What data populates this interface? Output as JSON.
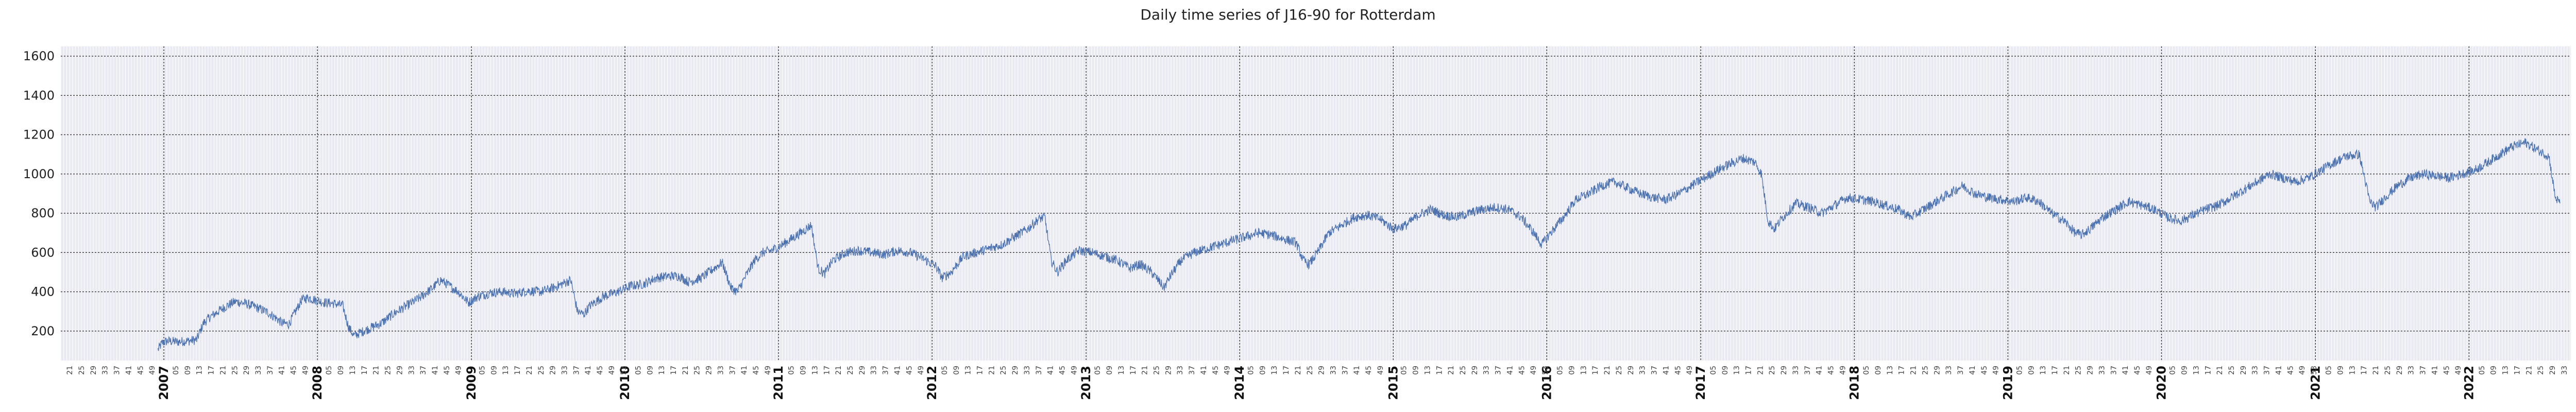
{
  "chart_data": {
    "type": "line",
    "title": "Daily time series of J16-90 for Rotterdam",
    "xlabel": "",
    "ylabel": "",
    "ylim": [
      50,
      1650
    ],
    "yticks": [
      200,
      400,
      600,
      800,
      1000,
      1200,
      1400,
      1600
    ],
    "grid": true,
    "x_range": [
      "2006-05-01",
      "2022-08-31"
    ],
    "year_labels": [
      "2007",
      "2008",
      "2009",
      "2010",
      "2011",
      "2012",
      "2013",
      "2014",
      "2015",
      "2016",
      "2017",
      "2018",
      "2019",
      "2020",
      "2021",
      "2022"
    ],
    "week_tick_interval_weeks": 4,
    "series": [
      {
        "color": "#4c72b0",
        "points": [
          [
            "2006-12-18",
            105
          ],
          [
            "2006-12-28",
            140
          ],
          [
            "2007-01-10",
            150
          ],
          [
            "2007-02-01",
            145
          ],
          [
            "2007-03-01",
            150
          ],
          [
            "2007-03-20",
            155
          ],
          [
            "2007-04-05",
            240
          ],
          [
            "2007-04-20",
            270
          ],
          [
            "2007-05-10",
            300
          ],
          [
            "2007-06-01",
            330
          ],
          [
            "2007-06-20",
            350
          ],
          [
            "2007-07-15",
            340
          ],
          [
            "2007-08-10",
            320
          ],
          [
            "2007-09-05",
            295
          ],
          [
            "2007-09-25",
            265
          ],
          [
            "2007-10-10",
            240
          ],
          [
            "2007-10-25",
            235
          ],
          [
            "2007-11-10",
            300
          ],
          [
            "2007-11-25",
            360
          ],
          [
            "2007-12-10",
            370
          ],
          [
            "2007-12-31",
            355
          ],
          [
            "2008-01-20",
            345
          ],
          [
            "2008-02-10",
            340
          ],
          [
            "2008-03-01",
            330
          ],
          [
            "2008-03-15",
            220
          ],
          [
            "2008-03-28",
            175
          ],
          [
            "2008-04-10",
            190
          ],
          [
            "2008-05-05",
            215
          ],
          [
            "2008-06-01",
            240
          ],
          [
            "2008-07-01",
            290
          ],
          [
            "2008-08-01",
            330
          ],
          [
            "2008-09-01",
            370
          ],
          [
            "2008-10-01",
            420
          ],
          [
            "2008-10-20",
            460
          ],
          [
            "2008-11-10",
            430
          ],
          [
            "2008-12-01",
            400
          ],
          [
            "2008-12-25",
            345
          ],
          [
            "2009-01-15",
            375
          ],
          [
            "2009-02-15",
            395
          ],
          [
            "2009-03-15",
            400
          ],
          [
            "2009-04-15",
            390
          ],
          [
            "2009-05-15",
            405
          ],
          [
            "2009-06-15",
            400
          ],
          [
            "2009-07-15",
            420
          ],
          [
            "2009-08-05",
            440
          ],
          [
            "2009-08-25",
            460
          ],
          [
            "2009-09-10",
            300
          ],
          [
            "2009-09-25",
            285
          ],
          [
            "2009-10-10",
            330
          ],
          [
            "2009-11-10",
            375
          ],
          [
            "2009-12-15",
            400
          ],
          [
            "2010-01-15",
            430
          ],
          [
            "2010-02-15",
            440
          ],
          [
            "2010-03-15",
            470
          ],
          [
            "2010-04-15",
            480
          ],
          [
            "2010-05-10",
            480
          ],
          [
            "2010-06-01",
            450
          ],
          [
            "2010-07-01",
            470
          ],
          [
            "2010-08-01",
            520
          ],
          [
            "2010-08-20",
            550
          ],
          [
            "2010-09-10",
            420
          ],
          [
            "2010-09-25",
            400
          ],
          [
            "2010-10-15",
            480
          ],
          [
            "2010-11-05",
            560
          ],
          [
            "2010-11-25",
            600
          ],
          [
            "2010-12-15",
            610
          ],
          [
            "2011-01-10",
            640
          ],
          [
            "2011-02-01",
            670
          ],
          [
            "2011-03-01",
            710
          ],
          [
            "2011-03-20",
            740
          ],
          [
            "2011-04-05",
            520
          ],
          [
            "2011-04-20",
            490
          ],
          [
            "2011-05-10",
            560
          ],
          [
            "2011-06-10",
            600
          ],
          [
            "2011-07-10",
            610
          ],
          [
            "2011-08-10",
            600
          ],
          [
            "2011-09-10",
            590
          ],
          [
            "2011-10-10",
            610
          ],
          [
            "2011-11-10",
            600
          ],
          [
            "2011-12-10",
            570
          ],
          [
            "2012-01-10",
            530
          ],
          [
            "2012-01-25",
            470
          ],
          [
            "2012-02-15",
            500
          ],
          [
            "2012-03-15",
            580
          ],
          [
            "2012-04-15",
            600
          ],
          [
            "2012-05-15",
            620
          ],
          [
            "2012-06-15",
            640
          ],
          [
            "2012-07-15",
            680
          ],
          [
            "2012-08-15",
            720
          ],
          [
            "2012-09-10",
            770
          ],
          [
            "2012-09-25",
            780
          ],
          [
            "2012-10-10",
            560
          ],
          [
            "2012-10-25",
            500
          ],
          [
            "2012-11-15",
            560
          ],
          [
            "2012-12-15",
            610
          ],
          [
            "2013-01-15",
            600
          ],
          [
            "2013-02-15",
            580
          ],
          [
            "2013-03-15",
            560
          ],
          [
            "2013-04-15",
            520
          ],
          [
            "2013-05-10",
            540
          ],
          [
            "2013-06-05",
            500
          ],
          [
            "2013-06-25",
            450
          ],
          [
            "2013-07-05",
            420
          ],
          [
            "2013-07-20",
            480
          ],
          [
            "2013-08-15",
            560
          ],
          [
            "2013-09-15",
            600
          ],
          [
            "2013-10-15",
            620
          ],
          [
            "2013-11-15",
            640
          ],
          [
            "2013-12-15",
            660
          ],
          [
            "2014-01-15",
            680
          ],
          [
            "2014-02-15",
            700
          ],
          [
            "2014-03-15",
            690
          ],
          [
            "2014-04-15",
            670
          ],
          [
            "2014-05-15",
            650
          ],
          [
            "2014-06-01",
            560
          ],
          [
            "2014-06-15",
            540
          ],
          [
            "2014-07-05",
            600
          ],
          [
            "2014-08-01",
            700
          ],
          [
            "2014-09-01",
            740
          ],
          [
            "2014-10-01",
            780
          ],
          [
            "2014-11-01",
            790
          ],
          [
            "2014-12-01",
            770
          ],
          [
            "2015-01-01",
            720
          ],
          [
            "2015-02-01",
            740
          ],
          [
            "2015-03-01",
            790
          ],
          [
            "2015-04-01",
            820
          ],
          [
            "2015-05-01",
            790
          ],
          [
            "2015-06-01",
            780
          ],
          [
            "2015-07-01",
            800
          ],
          [
            "2015-08-01",
            820
          ],
          [
            "2015-09-01",
            830
          ],
          [
            "2015-10-01",
            820
          ],
          [
            "2015-11-01",
            780
          ],
          [
            "2015-12-01",
            700
          ],
          [
            "2015-12-20",
            640
          ],
          [
            "2016-01-10",
            700
          ],
          [
            "2016-02-10",
            780
          ],
          [
            "2016-03-10",
            870
          ],
          [
            "2016-04-10",
            900
          ],
          [
            "2016-05-10",
            940
          ],
          [
            "2016-06-10",
            960
          ],
          [
            "2016-07-10",
            930
          ],
          [
            "2016-08-10",
            900
          ],
          [
            "2016-09-10",
            880
          ],
          [
            "2016-10-10",
            870
          ],
          [
            "2016-11-10",
            900
          ],
          [
            "2016-12-10",
            940
          ],
          [
            "2017-01-10",
            980
          ],
          [
            "2017-02-10",
            1020
          ],
          [
            "2017-03-10",
            1050
          ],
          [
            "2017-04-10",
            1080
          ],
          [
            "2017-05-10",
            1060
          ],
          [
            "2017-05-25",
            1000
          ],
          [
            "2017-06-10",
            760
          ],
          [
            "2017-06-25",
            720
          ],
          [
            "2017-07-15",
            780
          ],
          [
            "2017-08-15",
            850
          ],
          [
            "2017-09-15",
            830
          ],
          [
            "2017-10-15",
            800
          ],
          [
            "2017-11-15",
            840
          ],
          [
            "2017-12-15",
            880
          ],
          [
            "2018-01-15",
            870
          ],
          [
            "2018-02-15",
            860
          ],
          [
            "2018-03-15",
            840
          ],
          [
            "2018-04-15",
            820
          ],
          [
            "2018-05-15",
            780
          ],
          [
            "2018-06-15",
            820
          ],
          [
            "2018-07-15",
            860
          ],
          [
            "2018-08-15",
            900
          ],
          [
            "2018-09-15",
            940
          ],
          [
            "2018-10-15",
            900
          ],
          [
            "2018-11-15",
            880
          ],
          [
            "2018-12-15",
            870
          ],
          [
            "2019-01-15",
            860
          ],
          [
            "2019-02-15",
            880
          ],
          [
            "2019-03-15",
            860
          ],
          [
            "2019-04-15",
            800
          ],
          [
            "2019-05-15",
            760
          ],
          [
            "2019-06-10",
            700
          ],
          [
            "2019-06-25",
            690
          ],
          [
            "2019-07-15",
            720
          ],
          [
            "2019-08-15",
            780
          ],
          [
            "2019-09-15",
            820
          ],
          [
            "2019-10-15",
            860
          ],
          [
            "2019-11-15",
            840
          ],
          [
            "2019-12-15",
            820
          ],
          [
            "2020-01-15",
            780
          ],
          [
            "2020-02-15",
            760
          ],
          [
            "2020-03-15",
            790
          ],
          [
            "2020-04-15",
            820
          ],
          [
            "2020-05-15",
            840
          ],
          [
            "2020-06-15",
            880
          ],
          [
            "2020-07-15",
            920
          ],
          [
            "2020-08-15",
            960
          ],
          [
            "2020-09-15",
            1000
          ],
          [
            "2020-10-15",
            980
          ],
          [
            "2020-11-15",
            960
          ],
          [
            "2020-12-15",
            980
          ],
          [
            "2021-01-15",
            1020
          ],
          [
            "2021-02-15",
            1060
          ],
          [
            "2021-03-15",
            1090
          ],
          [
            "2021-04-15",
            1100
          ],
          [
            "2021-05-10",
            860
          ],
          [
            "2021-05-25",
            830
          ],
          [
            "2021-06-15",
            880
          ],
          [
            "2021-07-15",
            940
          ],
          [
            "2021-08-15",
            980
          ],
          [
            "2021-09-15",
            1000
          ],
          [
            "2021-10-15",
            990
          ],
          [
            "2021-11-15",
            980
          ],
          [
            "2021-12-15",
            1000
          ],
          [
            "2022-01-15",
            1020
          ],
          [
            "2022-02-15",
            1060
          ],
          [
            "2022-03-15",
            1100
          ],
          [
            "2022-04-15",
            1140
          ],
          [
            "2022-05-15",
            1160
          ],
          [
            "2022-06-15",
            1120
          ],
          [
            "2022-07-10",
            1090
          ],
          [
            "2022-07-25",
            880
          ],
          [
            "2022-08-05",
            850
          ]
        ]
      }
    ]
  }
}
